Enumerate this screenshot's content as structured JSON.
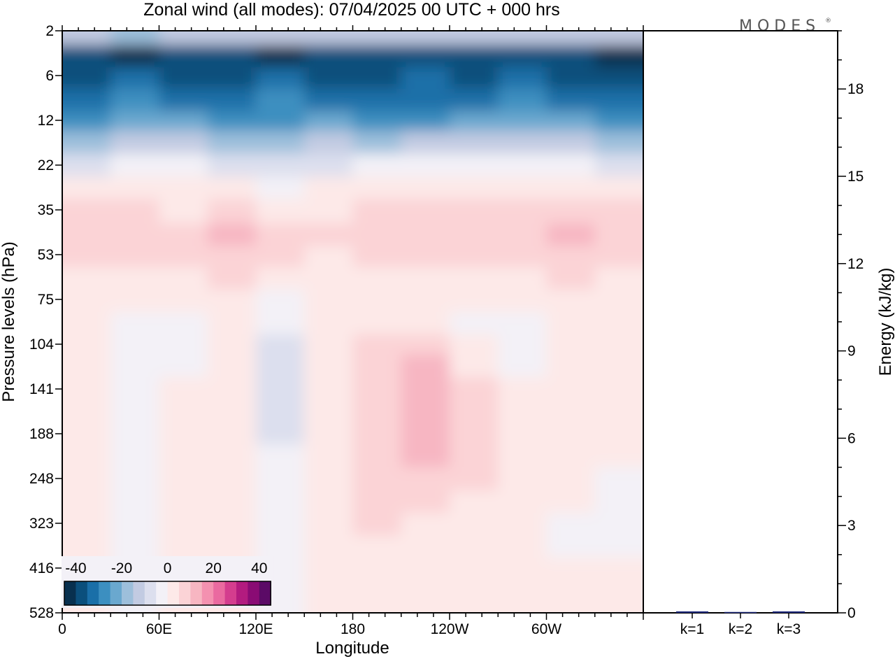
{
  "chart_data": [
    {
      "type": "heatmap",
      "title": "Zonal wind (all modes):  07/04/2025  00 UTC  + 000 hrs",
      "xlabel": "Longitude",
      "ylabel": "Pressure levels (hPa)",
      "x_ticks": [
        {
          "lon": 0,
          "label": "0"
        },
        {
          "lon": 60,
          "label": "60E"
        },
        {
          "lon": 120,
          "label": "120E"
        },
        {
          "lon": 180,
          "label": "180"
        },
        {
          "lon": 240,
          "label": "120W"
        },
        {
          "lon": 300,
          "label": "60W"
        }
      ],
      "xlim": [
        0,
        360
      ],
      "y_ticks": [
        "2",
        "6",
        "12",
        "22",
        "35",
        "53",
        "75",
        "104",
        "141",
        "188",
        "248",
        "323",
        "416",
        "528"
      ],
      "colorbar": {
        "labels": [
          "-40",
          "-20",
          "0",
          "20",
          "40"
        ],
        "colors": [
          "#08304f",
          "#0b4f7c",
          "#1a6fa8",
          "#3c8fc0",
          "#6aa8cf",
          "#9dbfdb",
          "#c2cbe2",
          "#dcdfee",
          "#f3f1f7",
          "#fde9e8",
          "#fbd3d6",
          "#f7b6c2",
          "#f491b0",
          "#ea6aa0",
          "#d43d8e",
          "#b31b7f",
          "#8a0b74",
          "#5b0a66"
        ]
      },
      "field_rows": [
        {
          "level": "2",
          "values": [
            -14,
            -16,
            -13,
            -15,
            -14,
            -13,
            -15,
            -14,
            -13,
            -12,
            -14,
            -13
          ]
        },
        {
          "level": "4",
          "values": [
            -40,
            -42,
            -36,
            -38,
            -41,
            -37,
            -38,
            -40,
            -39,
            -36,
            -37,
            -41
          ]
        },
        {
          "level": "6",
          "values": [
            -38,
            -35,
            -37,
            -39,
            -34,
            -36,
            -37,
            -35,
            -38,
            -33,
            -36,
            -40
          ]
        },
        {
          "level": "9",
          "values": [
            -33,
            -30,
            -31,
            -34,
            -30,
            -32,
            -34,
            -33,
            -31,
            -29,
            -32,
            -35
          ]
        },
        {
          "level": "12",
          "values": [
            -26,
            -24,
            -23,
            -28,
            -27,
            -25,
            -26,
            -27,
            -24,
            -22,
            -25,
            -27
          ]
        },
        {
          "level": "16",
          "values": [
            -16,
            -14,
            -13,
            -18,
            -19,
            -15,
            -16,
            -15,
            -14,
            -13,
            -14,
            -16
          ]
        },
        {
          "level": "22",
          "values": [
            -6,
            -5,
            -4,
            -7,
            -9,
            -6,
            -5,
            -5,
            -4,
            -4,
            -5,
            -6
          ]
        },
        {
          "level": "28",
          "values": [
            0,
            1,
            1,
            0,
            -1,
            1,
            2,
            1,
            1,
            2,
            1,
            1
          ]
        },
        {
          "level": "35",
          "values": [
            6,
            5,
            4,
            6,
            4,
            3,
            6,
            5,
            6,
            7,
            6,
            5
          ]
        },
        {
          "level": "45",
          "values": [
            9,
            8,
            9,
            11,
            7,
            5,
            8,
            9,
            8,
            9,
            10,
            8
          ]
        },
        {
          "level": "53",
          "values": [
            7,
            7,
            8,
            9,
            6,
            4,
            6,
            7,
            7,
            6,
            8,
            7
          ]
        },
        {
          "level": "64",
          "values": [
            3,
            4,
            4,
            5,
            3,
            2,
            3,
            4,
            4,
            3,
            5,
            4
          ]
        },
        {
          "level": "75",
          "values": [
            1,
            0,
            1,
            1,
            -1,
            1,
            2,
            1,
            0,
            1,
            3,
            2
          ]
        },
        {
          "level": "90",
          "values": [
            2,
            -1,
            -2,
            1,
            -4,
            0,
            4,
            3,
            -1,
            -3,
            3,
            2
          ]
        },
        {
          "level": "104",
          "values": [
            4,
            -2,
            -2,
            2,
            -7,
            1,
            6,
            7,
            2,
            -4,
            2,
            3
          ]
        },
        {
          "level": "120",
          "values": [
            2,
            -3,
            -1,
            2,
            -10,
            0,
            8,
            10,
            4,
            -3,
            1,
            2
          ]
        },
        {
          "level": "141",
          "values": [
            1,
            -3,
            0,
            1,
            -9,
            0,
            9,
            13,
            6,
            0,
            2,
            1
          ]
        },
        {
          "level": "160",
          "values": [
            1,
            -3,
            0,
            1,
            -8,
            0,
            9,
            13,
            7,
            1,
            1,
            1
          ]
        },
        {
          "level": "188",
          "values": [
            1,
            -2,
            1,
            1,
            -6,
            0,
            9,
            12,
            7,
            1,
            1,
            1
          ]
        },
        {
          "level": "215",
          "values": [
            1,
            -2,
            1,
            1,
            -5,
            1,
            8,
            10,
            6,
            1,
            1,
            0
          ]
        },
        {
          "level": "248",
          "values": [
            1,
            -2,
            1,
            0,
            -4,
            2,
            7,
            8,
            5,
            1,
            0,
            -1
          ]
        },
        {
          "level": "285",
          "values": [
            0,
            -2,
            1,
            0,
            -3,
            2,
            6,
            6,
            4,
            2,
            0,
            -1
          ]
        },
        {
          "level": "323",
          "values": [
            0,
            -2,
            1,
            0,
            -3,
            2,
            5,
            4,
            3,
            1,
            -1,
            -1
          ]
        },
        {
          "level": "370",
          "values": [
            1,
            -1,
            1,
            0,
            -3,
            2,
            4,
            3,
            2,
            1,
            -1,
            -1
          ]
        },
        {
          "level": "416",
          "values": [
            1,
            -1,
            1,
            0,
            -3,
            2,
            3,
            2,
            2,
            1,
            0,
            0
          ]
        },
        {
          "level": "470",
          "values": [
            1,
            -1,
            1,
            0,
            -3,
            1,
            2,
            2,
            1,
            1,
            0,
            0
          ]
        },
        {
          "level": "528",
          "values": [
            1,
            -1,
            1,
            0,
            -3,
            1,
            1,
            1,
            1,
            0,
            0,
            0
          ]
        }
      ]
    },
    {
      "type": "bar",
      "ylabel": "Energy (kJ/kg)",
      "categories": [
        "k=1",
        "k=2",
        "k=3"
      ],
      "values": [
        0.05,
        0.03,
        0.05
      ],
      "ylim": [
        0,
        20
      ],
      "y_ticks": [
        "0",
        "3",
        "6",
        "9",
        "12",
        "15",
        "18"
      ],
      "bar_color": "#1f2a7a"
    }
  ]
}
